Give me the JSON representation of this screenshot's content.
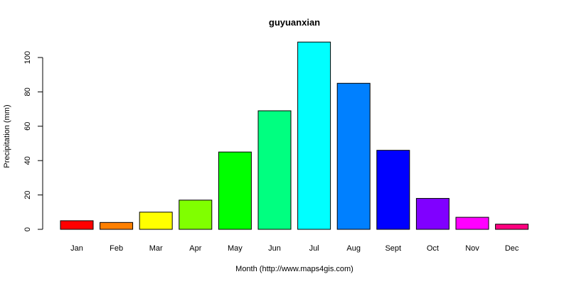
{
  "chart_data": {
    "type": "bar",
    "title": "guyuanxian",
    "xlabel": "Month (http://www.maps4gis.com)",
    "ylabel": "Precipitation (mm)",
    "categories": [
      "Jan",
      "Feb",
      "Mar",
      "Apr",
      "May",
      "Jun",
      "Jul",
      "Aug",
      "Sept",
      "Oct",
      "Nov",
      "Dec"
    ],
    "values": [
      5,
      4,
      10,
      17,
      45,
      69,
      109,
      85,
      46,
      18,
      7,
      3
    ],
    "colors": [
      "#FF0000",
      "#FF8000",
      "#FFFF00",
      "#80FF00",
      "#00FF00",
      "#00FF80",
      "#00FFFF",
      "#0080FF",
      "#0000FF",
      "#8000FF",
      "#FF00FF",
      "#FF0080"
    ],
    "yticks": [
      0,
      20,
      40,
      60,
      80,
      100
    ],
    "ylim": [
      0,
      110
    ],
    "grid": false,
    "legend": "none"
  }
}
